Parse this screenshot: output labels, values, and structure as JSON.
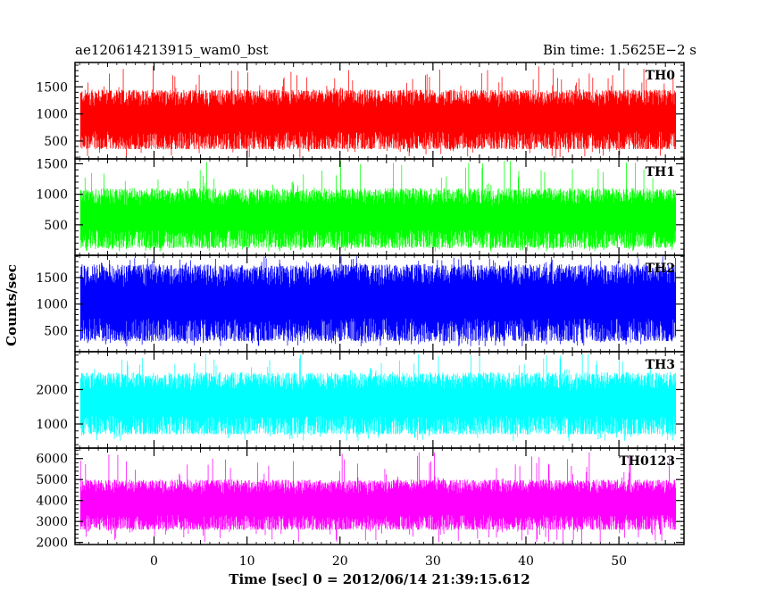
{
  "header": {
    "title": "ae120614213915_wam0_bst",
    "bin_time": "Bin time: 1.5625E−2 s"
  },
  "chart_data": {
    "type": "line",
    "xlabel": "Time [sec] 0 = 2012/06/14 21:39:15.612",
    "ylabel": "Counts/sec",
    "xlim": [
      -8.5,
      57
    ],
    "xticks": [
      0,
      10,
      20,
      30,
      40,
      50
    ],
    "x_data_range": [
      -7.9,
      56.1
    ],
    "grid": false,
    "panels": [
      {
        "name": "TH0",
        "color": "#ff0000",
        "ylim": [
          170,
          1950
        ],
        "yticks": [
          500,
          1000,
          1500
        ],
        "typical_range": [
          350,
          1450
        ],
        "extreme_range": [
          180,
          1900
        ]
      },
      {
        "name": "TH1",
        "color": "#00ff00",
        "ylim": [
          0,
          1580
        ],
        "yticks": [
          500,
          1000,
          1500
        ],
        "typical_range": [
          120,
          1100
        ],
        "extreme_range": [
          60,
          1560
        ]
      },
      {
        "name": "TH2",
        "color": "#0000ff",
        "ylim": [
          100,
          1920
        ],
        "yticks": [
          500,
          1000,
          1500
        ],
        "typical_range": [
          300,
          1750
        ],
        "extreme_range": [
          200,
          1900
        ]
      },
      {
        "name": "TH3",
        "color": "#00ffff",
        "ylim": [
          300,
          3100
        ],
        "yticks": [
          1000,
          2000
        ],
        "typical_range": [
          700,
          2500
        ],
        "extreme_range": [
          500,
          3050
        ]
      },
      {
        "name": "TH0123",
        "color": "#ff00ff",
        "ylim": [
          1900,
          6500
        ],
        "yticks": [
          2000,
          3000,
          4000,
          5000,
          6000
        ],
        "typical_range": [
          2600,
          5000
        ],
        "extreme_range": [
          2000,
          6300
        ]
      }
    ]
  }
}
